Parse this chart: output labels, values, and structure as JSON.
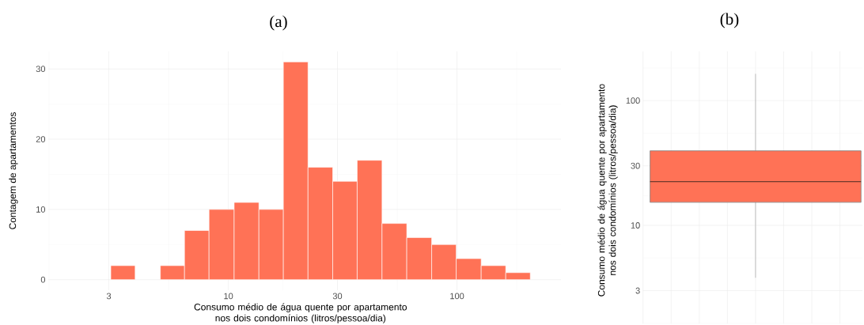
{
  "chart_data": [
    {
      "type": "histogram",
      "title": "(a)",
      "xlabel": "Consumo médio de água quente por apartamento nos dois condomínios (litros/pessoa/dia)",
      "ylabel": "Contagem de apartamentos",
      "bins": [
        3.06,
        3.91,
        5.04,
        6.43,
        8.23,
        10.6,
        13.6,
        17.4,
        22.3,
        28.6,
        36.6,
        47.0,
        60.3,
        77.5,
        99.2,
        127.6,
        163.4,
        209.2
      ],
      "values": [
        2,
        0,
        2,
        7,
        10,
        11,
        10,
        31,
        16,
        14,
        17,
        8,
        6,
        5,
        3,
        2,
        1
      ],
      "color": "#ff7256",
      "log": "x",
      "xlim": [
        1.63,
        285
      ],
      "ylim": [
        -1.5,
        32.5
      ],
      "xticks": [
        3,
        10,
        30,
        100
      ],
      "yticks": [
        0,
        10,
        20,
        30
      ],
      "grid": true
    },
    {
      "type": "box",
      "title": "(b)",
      "ylabel": "Consumo médio de água quente por apartamento nos dois condomínios (litros/pessoa/dia)",
      "categories": [
        null
      ],
      "boxes": [
        {
          "low": 3.8,
          "q1": 15.3,
          "median": 22.4,
          "q3": 39.6,
          "high": 164
        }
      ],
      "color": "#ff7256",
      "log": "y",
      "ylim": [
        1.63,
        248
      ],
      "yticks": [
        3,
        10,
        30,
        100
      ],
      "grid": true,
      "tick_labels": "y"
    }
  ]
}
